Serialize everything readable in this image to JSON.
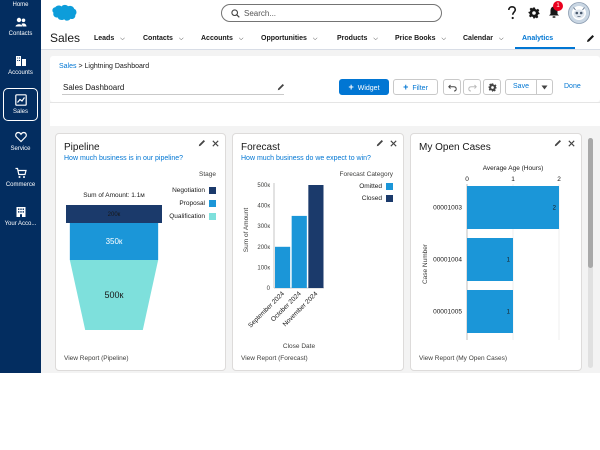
{
  "rail": {
    "items": [
      {
        "label": "Home",
        "icon": "home-icon"
      },
      {
        "label": "Contacts",
        "icon": "contacts-icon"
      },
      {
        "label": "Accounts",
        "icon": "accounts-icon"
      },
      {
        "label": "Sales",
        "icon": "sales-icon",
        "active": true
      },
      {
        "label": "Service",
        "icon": "heart-icon"
      },
      {
        "label": "Commerce",
        "icon": "cart-icon"
      },
      {
        "label": "Your Acco...",
        "icon": "building-icon"
      }
    ]
  },
  "header": {
    "search_placeholder": "Search...",
    "notification_count": "1"
  },
  "nav": {
    "app_name": "Sales",
    "tabs": [
      {
        "label": "Leads"
      },
      {
        "label": "Contacts"
      },
      {
        "label": "Accounts"
      },
      {
        "label": "Opportunities"
      },
      {
        "label": "Products"
      },
      {
        "label": "Price Books"
      },
      {
        "label": "Calendar"
      },
      {
        "label": "Analytics",
        "active": true
      }
    ]
  },
  "dashboard": {
    "breadcrumb_root": "Sales",
    "breadcrumb_current": "> Lightning Dashboard",
    "title": "Sales Dashboard",
    "widget_label": "Widget",
    "filter_label": "Filter",
    "save_label": "Save",
    "done_label": "Done"
  },
  "widgets": {
    "pipeline": {
      "title": "Pipeline",
      "subtitle": "How much business is in our pipeline?",
      "footer": "View Report (Pipeline)"
    },
    "forecast": {
      "title": "Forecast",
      "subtitle": "How much business do we expect to win?",
      "footer": "View Report (Forecast)"
    },
    "cases": {
      "title": "My Open Cases",
      "footer": "View Report (My Open Cases)"
    }
  },
  "chart_data": [
    {
      "type": "funnel",
      "title": "Sum of Amount: 1.1м",
      "legend_title": "Stage",
      "legend_position": "right",
      "categories": [
        "Negotiation",
        "Proposal",
        "Qualification"
      ],
      "values": [
        200,
        350,
        500
      ],
      "value_labels": [
        "200к",
        "350к",
        "500к"
      ],
      "colors": [
        "#1b3a6b",
        "#1b96d8",
        "#7ee0dc"
      ]
    },
    {
      "type": "bar",
      "stacked": true,
      "xlabel": "Close Date",
      "ylabel": "Sum of Amount",
      "categories": [
        "September 2024",
        "October 2024",
        "November 2024"
      ],
      "series": [
        {
          "name": "Omitted",
          "values": [
            200,
            350,
            0
          ],
          "color": "#1b96d8"
        },
        {
          "name": "Closed",
          "values": [
            0,
            0,
            500
          ],
          "color": "#1b3a6b"
        }
      ],
      "ylim": [
        0,
        500
      ],
      "yticks": [
        0,
        100,
        200,
        300,
        400,
        500
      ],
      "ytick_labels": [
        "0",
        "100к",
        "200к",
        "300к",
        "400к",
        "500к"
      ],
      "legend_title": "Forecast Category",
      "legend_position": "top-right"
    },
    {
      "type": "bar",
      "orientation": "horizontal",
      "title": "Average Age (Hours)",
      "ylabel": "Case Number",
      "categories": [
        "00001003",
        "00001004",
        "00001005"
      ],
      "values": [
        2,
        1,
        1
      ],
      "value_labels": [
        "2",
        "1",
        "1"
      ],
      "xlim": [
        0,
        2
      ],
      "xticks": [
        0,
        1,
        2
      ],
      "color": "#1b96d8"
    }
  ]
}
